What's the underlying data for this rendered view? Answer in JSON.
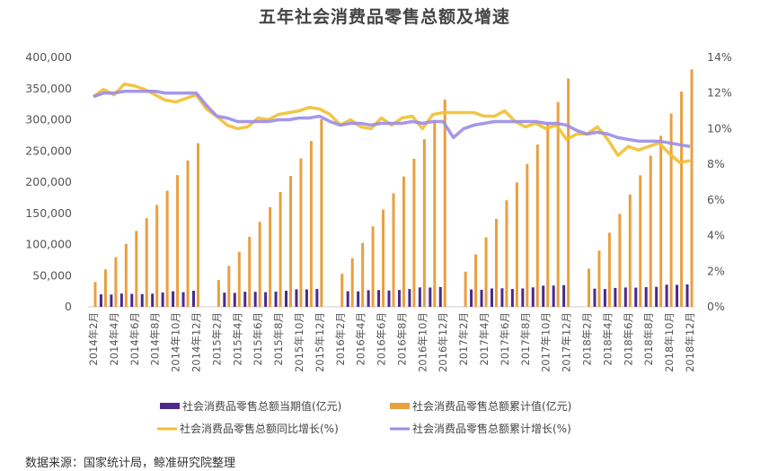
{
  "chart_data": {
    "type": "bar+line",
    "title": "五年社会消费品零售总额及增速",
    "source": "数据来源：国家统计局，鲸准研究院整理",
    "grid": false,
    "legend_position": "bottom",
    "y_left": {
      "ylim": [
        0,
        400000
      ],
      "ticks": [
        "0",
        "50,000",
        "100,000",
        "150,000",
        "200,000",
        "250,000",
        "300,000",
        "350,000",
        "400,000"
      ]
    },
    "y_right": {
      "ylim": [
        0,
        14
      ],
      "ticks": [
        "0%",
        "2%",
        "4%",
        "6%",
        "8%",
        "10%",
        "12%",
        "14%"
      ]
    },
    "categories": [
      "2014年2月",
      "2014年3月",
      "2014年4月",
      "2014年5月",
      "2014年6月",
      "2014年7月",
      "2014年8月",
      "2014年9月",
      "2014年10月",
      "2014年11月",
      "2014年12月",
      "2015年1月",
      "2015年2月",
      "2015年3月",
      "2015年4月",
      "2015年5月",
      "2015年6月",
      "2015年7月",
      "2015年8月",
      "2015年9月",
      "2015年10月",
      "2015年11月",
      "2015年12月",
      "2016年1月",
      "2016年2月",
      "2016年3月",
      "2016年4月",
      "2016年5月",
      "2016年6月",
      "2016年7月",
      "2016年8月",
      "2016年9月",
      "2016年10月",
      "2016年11月",
      "2016年12月",
      "2017年1月",
      "2017年2月",
      "2017年3月",
      "2017年4月",
      "2017年5月",
      "2017年6月",
      "2017年7月",
      "2017年8月",
      "2017年9月",
      "2017年10月",
      "2017年11月",
      "2017年12月",
      "2018年1月",
      "2018年2月",
      "2018年3月",
      "2018年4月",
      "2018年5月",
      "2018年6月",
      "2018年7月",
      "2018年8月",
      "2018年9月",
      "2018年10月",
      "2018年11月",
      "2018年12月"
    ],
    "series": [
      {
        "name": "社会消费品零售总额当期值(亿元)",
        "type": "bar",
        "axis": "left",
        "color": "#4b2a8c",
        "values": [
          null,
          20043,
          19701,
          21250,
          20815,
          20462,
          21134,
          22940,
          24940,
          23475,
          25801,
          null,
          null,
          22733,
          22386,
          24195,
          24047,
          23425,
          24274,
          25806,
          28083,
          27937,
          28635,
          null,
          null,
          24915,
          24646,
          26610,
          26857,
          26121,
          27000,
          28580,
          31119,
          30959,
          31757,
          null,
          null,
          27864,
          27278,
          29459,
          29808,
          28611,
          29530,
          31208,
          34000,
          34108,
          34734,
          null,
          null,
          29194,
          28542,
          30359,
          31001,
          30734,
          31542,
          32005,
          35534,
          35260,
          35893
        ]
      },
      {
        "name": "社会消费品零售总额累计值(亿元)",
        "type": "bar",
        "axis": "left",
        "color": "#e8a040",
        "values": [
          39922,
          59965,
          79666,
          100916,
          121731,
          142193,
          163327,
          186267,
          211207,
          234682,
          262394,
          null,
          43000,
          65733,
          88119,
          112314,
          136361,
          159786,
          184060,
          209866,
          237949,
          265886,
          300931,
          null,
          52911,
          77826,
          102472,
          129082,
          155939,
          182060,
          209060,
          237640,
          268759,
          299718,
          332316,
          null,
          56500,
          84364,
          111642,
          141101,
          170909,
          199520,
          229050,
          260258,
          294258,
          328366,
          366262,
          null,
          61082,
          90276,
          118818,
          149177,
          180178,
          210912,
          242454,
          274459,
          309993,
          345253,
          380987
        ]
      },
      {
        "name": "社会消费品零售总额同比增长(%)",
        "type": "line",
        "axis": "right",
        "color": "#f0c030",
        "values": [
          11.8,
          12.2,
          11.9,
          12.5,
          12.4,
          12.2,
          11.9,
          11.6,
          11.5,
          11.7,
          11.9,
          11.1,
          10.7,
          10.2,
          10.0,
          10.1,
          10.6,
          10.5,
          10.8,
          10.9,
          11.0,
          11.2,
          11.1,
          10.8,
          10.2,
          10.5,
          10.1,
          10.0,
          10.6,
          10.2,
          10.6,
          10.7,
          10.0,
          10.8,
          10.9,
          10.9,
          10.9,
          10.9,
          10.7,
          10.7,
          11.0,
          10.4,
          10.1,
          10.3,
          10.0,
          10.2,
          9.4,
          9.7,
          9.7,
          10.1,
          9.4,
          8.5,
          9.0,
          8.8,
          9.0,
          9.2,
          8.6,
          8.1,
          8.2
        ]
      },
      {
        "name": "社会消费品零售总额累计增长(%)",
        "type": "line",
        "axis": "right",
        "color": "#9b8ce8",
        "values": [
          11.8,
          12.0,
          12.0,
          12.1,
          12.1,
          12.1,
          12.1,
          12.0,
          12.0,
          12.0,
          12.0,
          11.3,
          10.7,
          10.6,
          10.4,
          10.4,
          10.4,
          10.4,
          10.5,
          10.5,
          10.6,
          10.6,
          10.7,
          10.4,
          10.2,
          10.3,
          10.3,
          10.2,
          10.3,
          10.3,
          10.3,
          10.4,
          10.3,
          10.4,
          10.4,
          9.5,
          10.0,
          10.2,
          10.3,
          10.4,
          10.4,
          10.4,
          10.4,
          10.4,
          10.3,
          10.3,
          10.2,
          9.9,
          9.7,
          9.8,
          9.7,
          9.5,
          9.4,
          9.3,
          9.3,
          9.3,
          9.2,
          9.1,
          9.0
        ]
      }
    ]
  }
}
